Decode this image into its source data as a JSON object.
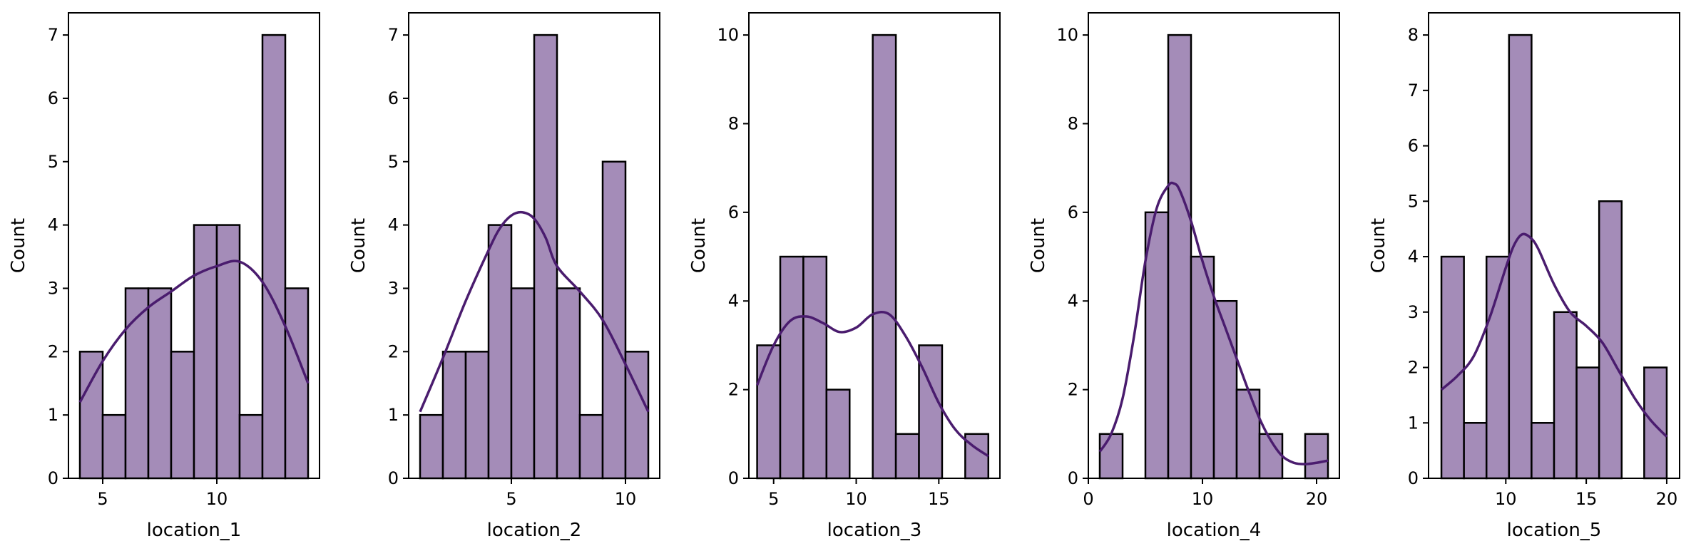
{
  "figure": {
    "bar_color": "#a48cb8",
    "bar_edge": "#000000",
    "kde_color": "#4a1c6e"
  },
  "chart_data": [
    {
      "type": "bar",
      "xlabel": "location_1",
      "ylabel": "Count",
      "xlim": [
        3.5,
        14.5
      ],
      "ylim": [
        0,
        7.35
      ],
      "xticks": [
        5,
        10
      ],
      "yticks": [
        0,
        1,
        2,
        3,
        4,
        5,
        6,
        7
      ],
      "bins": [
        [
          4,
          5
        ],
        [
          5,
          6
        ],
        [
          6,
          7
        ],
        [
          7,
          8
        ],
        [
          8,
          9
        ],
        [
          9,
          10
        ],
        [
          10,
          11
        ],
        [
          11,
          12
        ],
        [
          12,
          13
        ],
        [
          13,
          14
        ]
      ],
      "values": [
        2,
        1,
        3,
        3,
        2,
        4,
        4,
        1,
        7,
        3
      ],
      "kde": {
        "x": [
          4,
          5,
          6,
          7,
          8,
          9,
          10,
          11,
          12,
          13,
          14
        ],
        "y": [
          1.2,
          1.85,
          2.35,
          2.7,
          2.95,
          3.2,
          3.35,
          3.42,
          3.1,
          2.4,
          1.5
        ]
      }
    },
    {
      "type": "bar",
      "xlabel": "location_2",
      "ylabel": "Count",
      "xlim": [
        0.5,
        11.5
      ],
      "ylim": [
        0,
        7.35
      ],
      "xticks": [
        5,
        10
      ],
      "yticks": [
        0,
        1,
        2,
        3,
        4,
        5,
        6,
        7
      ],
      "bins": [
        [
          1,
          2
        ],
        [
          2,
          3
        ],
        [
          3,
          4
        ],
        [
          4,
          5
        ],
        [
          5,
          6
        ],
        [
          6,
          7
        ],
        [
          7,
          8
        ],
        [
          8,
          9
        ],
        [
          9,
          10
        ],
        [
          10,
          11
        ]
      ],
      "values": [
        1,
        2,
        2,
        4,
        3,
        7,
        3,
        1,
        5,
        2
      ],
      "kde": {
        "x": [
          1,
          2,
          3,
          4,
          4.5,
          5,
          5.5,
          6,
          6.5,
          7,
          8,
          9,
          10,
          11
        ],
        "y": [
          1.05,
          1.9,
          2.8,
          3.6,
          3.95,
          4.15,
          4.2,
          4.1,
          3.8,
          3.35,
          2.95,
          2.5,
          1.8,
          1.05
        ]
      }
    },
    {
      "type": "bar",
      "xlabel": "location_3",
      "ylabel": "Count",
      "xlim": [
        3.5,
        18.7
      ],
      "ylim": [
        0,
        10.5
      ],
      "xticks": [
        5,
        10,
        15
      ],
      "yticks": [
        0,
        2,
        4,
        6,
        8,
        10
      ],
      "bins": [
        [
          4,
          5.4
        ],
        [
          5.4,
          6.8
        ],
        [
          6.8,
          8.2
        ],
        [
          8.2,
          9.6
        ],
        [
          9.6,
          11
        ],
        [
          11,
          12.4
        ],
        [
          12.4,
          13.8
        ],
        [
          13.8,
          15.2
        ],
        [
          15.2,
          16.6
        ],
        [
          16.6,
          18
        ]
      ],
      "values": [
        3,
        5,
        5,
        2,
        0,
        10,
        1,
        3,
        0,
        1
      ],
      "kde": {
        "x": [
          4,
          5,
          6,
          7,
          8,
          9,
          10,
          11,
          12,
          13,
          14,
          15,
          16,
          17,
          18
        ],
        "y": [
          2.1,
          3.0,
          3.55,
          3.65,
          3.5,
          3.3,
          3.4,
          3.7,
          3.7,
          3.2,
          2.5,
          1.7,
          1.1,
          0.75,
          0.5
        ]
      }
    },
    {
      "type": "bar",
      "xlabel": "location_4",
      "ylabel": "Count",
      "xlim": [
        0,
        22
      ],
      "ylim": [
        0,
        10.5
      ],
      "xticks": [
        0,
        10,
        20
      ],
      "yticks": [
        0,
        2,
        4,
        6,
        8,
        10
      ],
      "bins": [
        [
          1,
          3
        ],
        [
          3,
          5
        ],
        [
          5,
          7
        ],
        [
          7,
          9
        ],
        [
          9,
          11
        ],
        [
          11,
          13
        ],
        [
          13,
          15
        ],
        [
          15,
          17
        ],
        [
          17,
          19
        ],
        [
          19,
          21
        ]
      ],
      "values": [
        1,
        0,
        6,
        10,
        5,
        4,
        2,
        1,
        0,
        1
      ],
      "kde": {
        "x": [
          1,
          2,
          3,
          4,
          5,
          6,
          7,
          7.5,
          8,
          9,
          10,
          11,
          12,
          13,
          14,
          15,
          16,
          17,
          18,
          19,
          20,
          21
        ],
        "y": [
          0.6,
          1.0,
          1.8,
          3.2,
          4.9,
          6.1,
          6.6,
          6.65,
          6.5,
          5.8,
          4.9,
          4.1,
          3.4,
          2.7,
          2.0,
          1.35,
          0.85,
          0.5,
          0.35,
          0.32,
          0.35,
          0.4
        ]
      }
    },
    {
      "type": "bar",
      "xlabel": "location_5",
      "ylabel": "Count",
      "xlim": [
        5.2,
        20.8
      ],
      "ylim": [
        0,
        8.4
      ],
      "xticks": [
        10,
        15,
        20
      ],
      "yticks": [
        0,
        1,
        2,
        3,
        4,
        5,
        6,
        7,
        8
      ],
      "bins": [
        [
          6,
          7.4
        ],
        [
          7.4,
          8.8
        ],
        [
          8.8,
          10.2
        ],
        [
          10.2,
          11.6
        ],
        [
          11.6,
          13
        ],
        [
          13,
          14.4
        ],
        [
          14.4,
          15.8
        ],
        [
          15.8,
          17.2
        ],
        [
          17.2,
          18.6
        ],
        [
          18.6,
          20
        ]
      ],
      "values": [
        4,
        1,
        4,
        8,
        1,
        3,
        2,
        5,
        0,
        2
      ],
      "kde": {
        "x": [
          6,
          7,
          8,
          9,
          10,
          10.5,
          11,
          11.5,
          12,
          13,
          14,
          15,
          16,
          17,
          18,
          19,
          20
        ],
        "y": [
          1.6,
          1.85,
          2.2,
          2.9,
          3.8,
          4.2,
          4.4,
          4.35,
          4.15,
          3.5,
          3.0,
          2.75,
          2.45,
          1.95,
          1.45,
          1.05,
          0.75
        ]
      }
    }
  ]
}
